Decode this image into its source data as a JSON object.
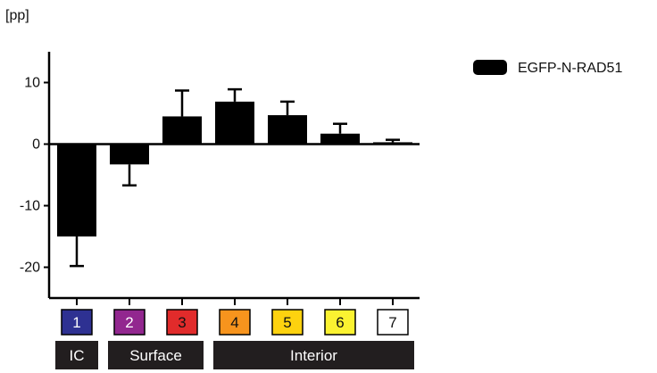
{
  "chart_data": {
    "type": "bar",
    "ylabel": "[pp]",
    "ylim": [
      -25,
      15
    ],
    "yticks": [
      -20,
      -10,
      0,
      10
    ],
    "grid": false,
    "legend_position": "top-right",
    "categories": [
      "1",
      "2",
      "3",
      "4",
      "5",
      "6",
      "7"
    ],
    "category_colors": [
      "#2e3192",
      "#92278f",
      "#e12b2b",
      "#f7941d",
      "#fdd20f",
      "#fbf231",
      "#ffffff"
    ],
    "category_text_colors": [
      "#ffffff",
      "#ffffff",
      "#111111",
      "#111111",
      "#111111",
      "#111111",
      "#111111"
    ],
    "series": [
      {
        "name": "EGFP-N-RAD51",
        "color": "#000000",
        "values": [
          -15.0,
          -3.3,
          4.5,
          6.9,
          4.7,
          1.7,
          0.3
        ],
        "errors": [
          4.8,
          3.4,
          4.2,
          2.0,
          2.2,
          1.6,
          0.4
        ]
      }
    ],
    "groups": [
      {
        "label": "IC",
        "from": 0,
        "to": 0
      },
      {
        "label": "Surface",
        "from": 1,
        "to": 2
      },
      {
        "label": "Interior",
        "from": 3,
        "to": 6
      }
    ]
  }
}
